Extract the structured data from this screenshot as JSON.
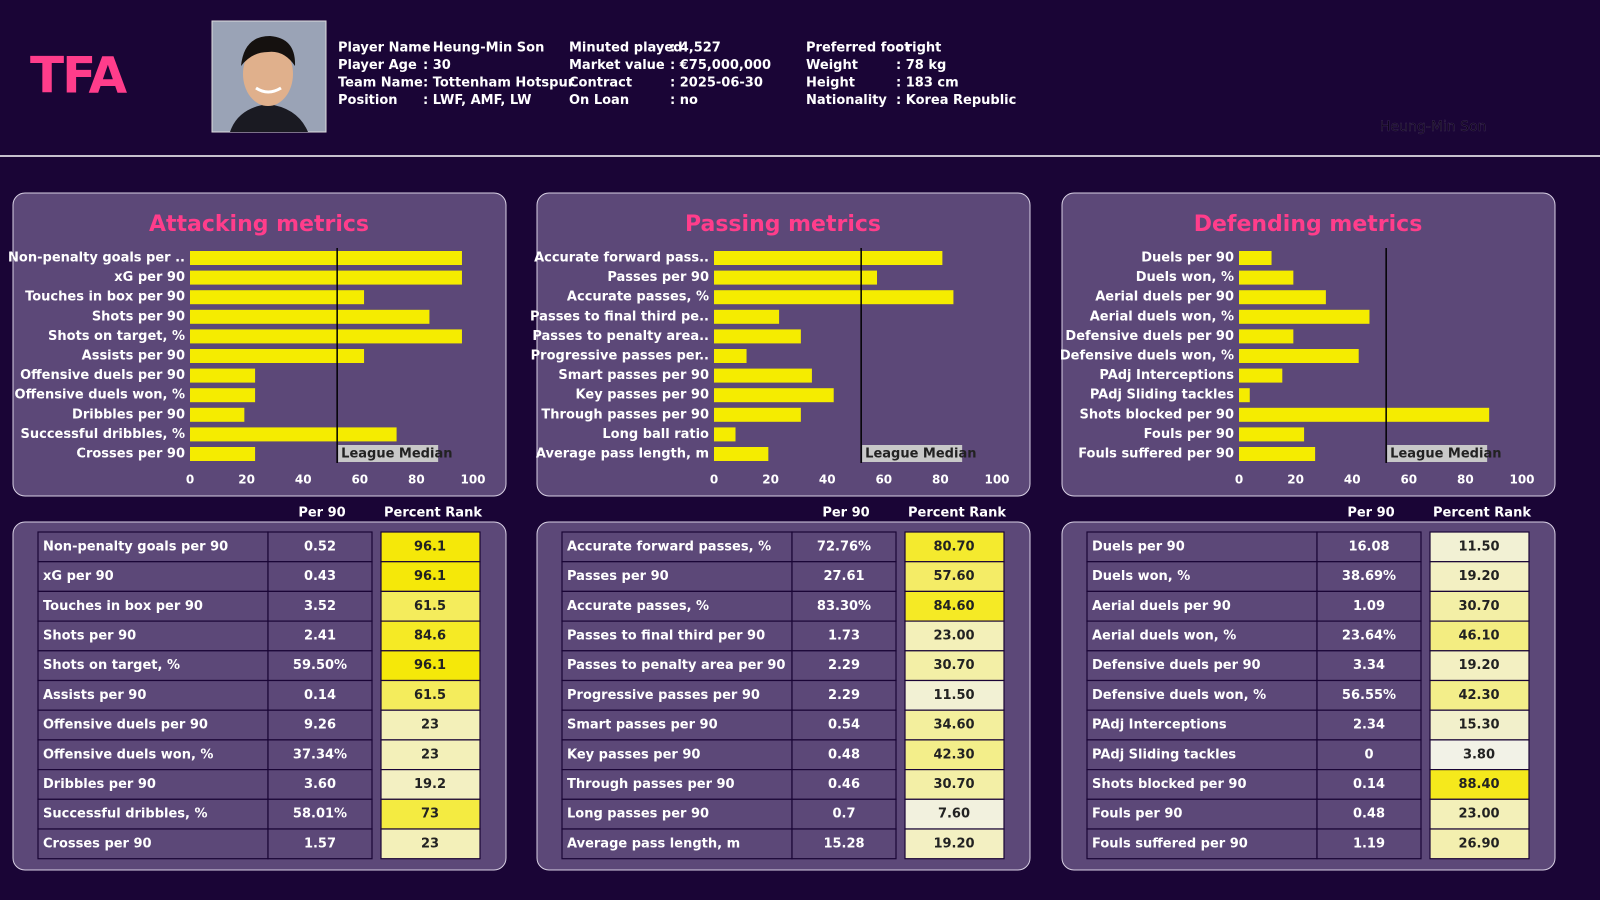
{
  "header": {
    "logo": "TFA",
    "watermark": "Heung-Min Son",
    "info": [
      [
        {
          "label": "Player Name",
          "value": ": Heung-Min Son"
        },
        {
          "label": "Player Age",
          "value": ": 30"
        },
        {
          "label": "Team Name",
          "value": ": Tottenham Hotspur"
        },
        {
          "label": "Position",
          "value": ": LWF, AMF, LW"
        }
      ],
      [
        {
          "label": "Minuted played",
          "value": ": 4,527"
        },
        {
          "label": "Market value",
          "value": ": €75,000,000"
        },
        {
          "label": "Contract",
          "value": ": 2025-06-30"
        },
        {
          "label": "On Loan",
          "value": ": no"
        }
      ],
      [
        {
          "label": "Preferred foot",
          "value": ": right"
        },
        {
          "label": "Weight",
          "value": ": 78 kg"
        },
        {
          "label": "Height",
          "value": ": 183 cm"
        },
        {
          "label": "Nationality",
          "value": ": Korea Republic"
        }
      ]
    ]
  },
  "chart_data": [
    {
      "type": "bar",
      "orientation": "horizontal",
      "title": "Attacking metrics",
      "color": "#f5ec00",
      "categories": [
        "Non-penalty goals per ..",
        "xG per 90",
        "Touches in box per 90",
        "Shots per 90",
        "Shots on target, %",
        "Assists per 90",
        "Offensive duels per 90",
        "Offensive duels won, %",
        "Dribbles per 90",
        "Successful dribbles, %",
        "Crosses per 90"
      ],
      "values": [
        96.1,
        96.1,
        61.5,
        84.6,
        96.1,
        61.5,
        23,
        23,
        19.2,
        73,
        23
      ],
      "xlim": [
        0,
        100
      ],
      "xticks": [
        0,
        20,
        40,
        60,
        80,
        100
      ],
      "median": {
        "value": 52,
        "label": "League Median"
      }
    },
    {
      "type": "bar",
      "orientation": "horizontal",
      "title": "Passing metrics",
      "color": "#f5ec00",
      "categories": [
        "Accurate forward pass..",
        "Passes per 90",
        "Accurate passes, %",
        "Passes to final third pe..",
        "Passes to penalty area..",
        "Progressive passes per..",
        "Smart passes per 90",
        "Key passes per 90",
        "Through passes per 90",
        "Long ball ratio",
        "Average pass length, m"
      ],
      "values": [
        80.7,
        57.6,
        84.6,
        23,
        30.7,
        11.5,
        34.6,
        42.3,
        30.7,
        7.6,
        19.2
      ],
      "xlim": [
        0,
        100
      ],
      "xticks": [
        0,
        20,
        40,
        60,
        80,
        100
      ],
      "median": {
        "value": 52,
        "label": "League Median"
      }
    },
    {
      "type": "bar",
      "orientation": "horizontal",
      "title": "Defending metrics",
      "color": "#f5ec00",
      "categories": [
        "Duels per 90",
        "Duels won, %",
        "Aerial duels per 90",
        "Aerial duels won, %",
        "Defensive duels per 90",
        "Defensive duels won, %",
        "PAdj Interceptions",
        "PAdj Sliding tackles",
        "Shots blocked per 90",
        "Fouls per 90",
        "Fouls suffered per 90"
      ],
      "values": [
        11.5,
        19.2,
        30.7,
        46.1,
        19.2,
        42.3,
        15.3,
        3.8,
        88.4,
        23,
        26.9
      ],
      "xlim": [
        0,
        100
      ],
      "xticks": [
        0,
        20,
        40,
        60,
        80,
        100
      ],
      "median": {
        "value": 52,
        "label": "League Median"
      }
    }
  ],
  "tables": [
    {
      "headers": [
        "Per 90",
        "Percent Rank"
      ],
      "rows": [
        [
          "Non-penalty goals per 90",
          "0.52",
          "96.1"
        ],
        [
          "xG per 90",
          "0.43",
          "96.1"
        ],
        [
          "Touches in box per 90",
          "3.52",
          "61.5"
        ],
        [
          "Shots per 90",
          "2.41",
          "84.6"
        ],
        [
          "Shots on target, %",
          "59.50%",
          "96.1"
        ],
        [
          "Assists per 90",
          "0.14",
          "61.5"
        ],
        [
          "Offensive duels per 90",
          "9.26",
          "23"
        ],
        [
          "Offensive duels won, %",
          "37.34%",
          "23"
        ],
        [
          "Dribbles per 90",
          "3.60",
          "19.2"
        ],
        [
          "Successful dribbles, %",
          "58.01%",
          "73"
        ],
        [
          "Crosses per 90",
          "1.57",
          "23"
        ]
      ]
    },
    {
      "headers": [
        "Per 90",
        "Percent Rank"
      ],
      "rows": [
        [
          "Accurate forward passes, %",
          "72.76%",
          "80.70"
        ],
        [
          "Passes per 90",
          "27.61",
          "57.60"
        ],
        [
          "Accurate passes, %",
          "83.30%",
          "84.60"
        ],
        [
          "Passes to final third per 90",
          "1.73",
          "23.00"
        ],
        [
          "Passes to penalty area per 90",
          "2.29",
          "30.70"
        ],
        [
          "Progressive passes per 90",
          "2.29",
          "11.50"
        ],
        [
          "Smart passes per 90",
          "0.54",
          "34.60"
        ],
        [
          "Key passes per 90",
          "0.48",
          "42.30"
        ],
        [
          "Through passes per 90",
          "0.46",
          "30.70"
        ],
        [
          "Long passes per 90",
          "0.7",
          "7.60"
        ],
        [
          "Average pass length, m",
          "15.28",
          "19.20"
        ]
      ]
    },
    {
      "headers": [
        "Per 90",
        "Percent Rank"
      ],
      "rows": [
        [
          "Duels per 90",
          "16.08",
          "11.50"
        ],
        [
          "Duels won, %",
          "38.69%",
          "19.20"
        ],
        [
          "Aerial duels per 90",
          "1.09",
          "30.70"
        ],
        [
          "Aerial duels won, %",
          "23.64%",
          "46.10"
        ],
        [
          "Defensive duels per 90",
          "3.34",
          "19.20"
        ],
        [
          "Defensive duels won, %",
          "56.55%",
          "42.30"
        ],
        [
          "PAdj Interceptions",
          "2.34",
          "15.30"
        ],
        [
          "PAdj Sliding tackles",
          "0",
          "3.80"
        ],
        [
          "Shots blocked per 90",
          "0.14",
          "88.40"
        ],
        [
          "Fouls per 90",
          "0.48",
          "23.00"
        ],
        [
          "Fouls suffered per 90",
          "1.19",
          "26.90"
        ]
      ]
    }
  ]
}
